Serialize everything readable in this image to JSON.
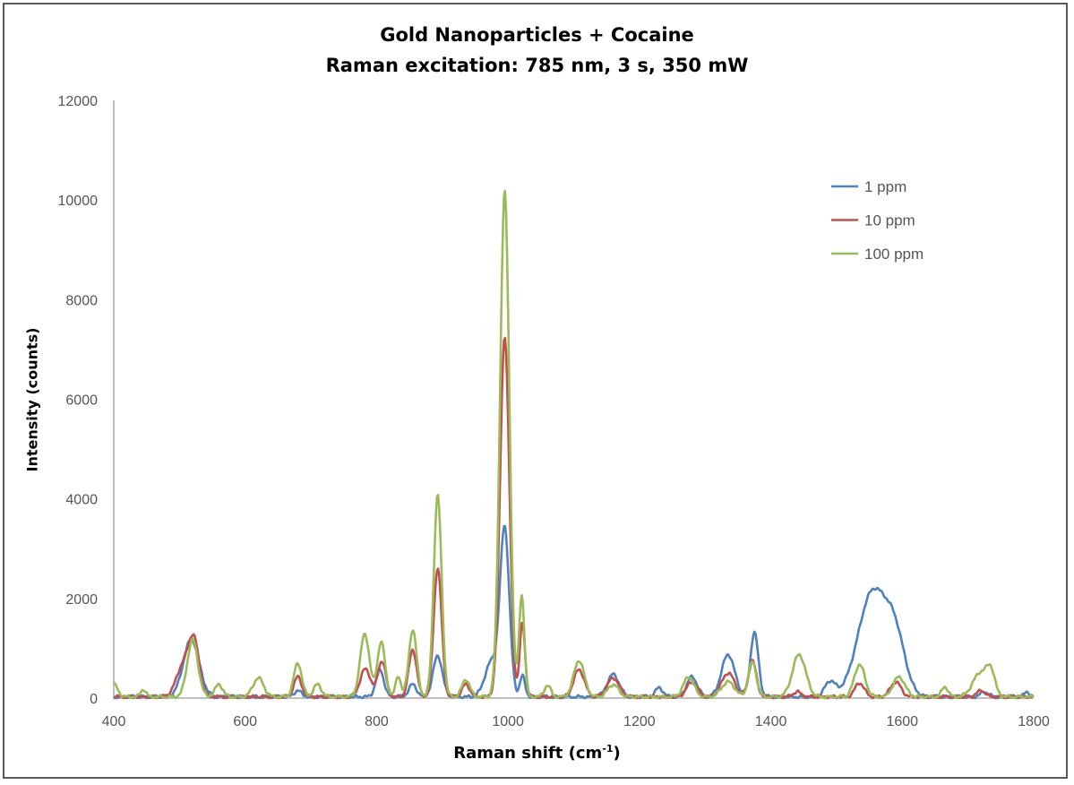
{
  "chart_data": {
    "type": "line",
    "title": "Gold Nanoparticles + Cocaine",
    "subtitle": "Raman excitation: 785 nm, 3 s, 350 mW",
    "xlabel": "Raman shift (cm",
    "xlabel_sup": "-1",
    "xlabel_suffix": ")",
    "ylabel": "Intensity (counts)",
    "xlim": [
      400,
      1800
    ],
    "ylim": [
      0,
      12000
    ],
    "xticks": [
      "400",
      "600",
      "800",
      "1000",
      "1200",
      "1400",
      "1600",
      "1800"
    ],
    "yticks": [
      "0",
      "2000",
      "4000",
      "6000",
      "8000",
      "10000",
      "12000"
    ],
    "legend_position": "top-right",
    "grid": false,
    "series": [
      {
        "name": "1 ppm",
        "color": "#4F81BD",
        "peaks": [
          [
            518,
            1150,
            12
          ],
          [
            680,
            120,
            6
          ],
          [
            805,
            550,
            6
          ],
          [
            855,
            250,
            6
          ],
          [
            893,
            830,
            7
          ],
          [
            975,
            700,
            10
          ],
          [
            995,
            3350,
            7
          ],
          [
            1022,
            420,
            4
          ],
          [
            1160,
            450,
            9
          ],
          [
            1230,
            180,
            6
          ],
          [
            1280,
            400,
            8
          ],
          [
            1335,
            850,
            10
          ],
          [
            1375,
            1300,
            6
          ],
          [
            1490,
            300,
            8
          ],
          [
            1555,
            2100,
            22
          ],
          [
            1590,
            1000,
            15
          ],
          [
            1725,
            100,
            6
          ],
          [
            1790,
            80,
            6
          ]
        ]
      },
      {
        "name": "10 ppm",
        "color": "#C0504D",
        "peaks": [
          [
            505,
            600,
            10
          ],
          [
            522,
            1100,
            8
          ],
          [
            680,
            400,
            6
          ],
          [
            783,
            560,
            8
          ],
          [
            808,
            720,
            6
          ],
          [
            855,
            950,
            6
          ],
          [
            893,
            2600,
            6
          ],
          [
            936,
            250,
            6
          ],
          [
            995,
            7250,
            7
          ],
          [
            1022,
            1500,
            4
          ],
          [
            1108,
            550,
            8
          ],
          [
            1160,
            380,
            9
          ],
          [
            1280,
            300,
            8
          ],
          [
            1335,
            480,
            10
          ],
          [
            1372,
            720,
            6
          ],
          [
            1440,
            100,
            6
          ],
          [
            1535,
            280,
            7
          ],
          [
            1590,
            300,
            8
          ],
          [
            1720,
            130,
            6
          ]
        ]
      },
      {
        "name": "100 ppm",
        "color": "#9BBB59",
        "peaks": [
          [
            400,
            250,
            6
          ],
          [
            445,
            150,
            4
          ],
          [
            520,
            1150,
            8
          ],
          [
            560,
            250,
            6
          ],
          [
            620,
            380,
            8
          ],
          [
            680,
            680,
            6
          ],
          [
            710,
            250,
            6
          ],
          [
            782,
            1270,
            7
          ],
          [
            807,
            1100,
            6
          ],
          [
            833,
            420,
            4
          ],
          [
            855,
            1350,
            6
          ],
          [
            893,
            4050,
            6
          ],
          [
            936,
            350,
            6
          ],
          [
            995,
            10150,
            7
          ],
          [
            1021,
            2050,
            4
          ],
          [
            1060,
            230,
            5
          ],
          [
            1108,
            730,
            8
          ],
          [
            1160,
            250,
            8
          ],
          [
            1275,
            400,
            8
          ],
          [
            1335,
            300,
            10
          ],
          [
            1372,
            700,
            6
          ],
          [
            1443,
            850,
            10
          ],
          [
            1535,
            650,
            8
          ],
          [
            1595,
            400,
            9
          ],
          [
            1665,
            200,
            5
          ],
          [
            1720,
            500,
            12
          ],
          [
            1735,
            400,
            6
          ]
        ]
      }
    ]
  }
}
